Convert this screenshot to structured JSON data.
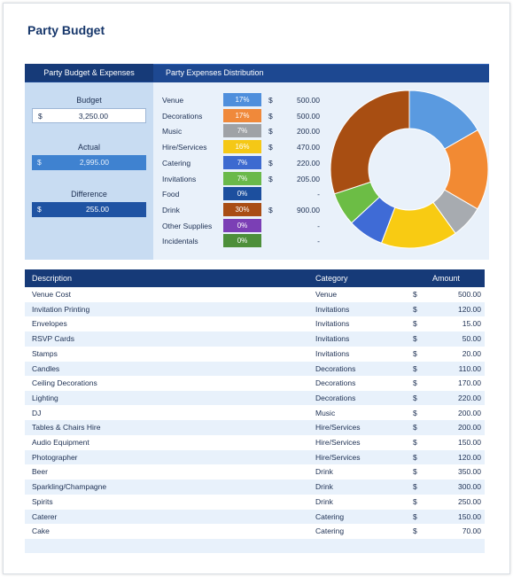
{
  "title": "Party Budget",
  "summary": {
    "left_header": "Party Budget & Expenses",
    "right_header": "Party Expenses Distribution",
    "budget_label": "Budget",
    "budget_currency": "$",
    "budget_value": "3,250.00",
    "actual_label": "Actual",
    "actual_currency": "$",
    "actual_value": "2,995.00",
    "difference_label": "Difference",
    "difference_currency": "$",
    "difference_value": "255.00"
  },
  "distribution": [
    {
      "name": "Venue",
      "pct": "17%",
      "currency": "$",
      "amount": "500.00",
      "color": "#4f8fdc"
    },
    {
      "name": "Decorations",
      "pct": "17%",
      "currency": "$",
      "amount": "500.00",
      "color": "#f0893a"
    },
    {
      "name": "Music",
      "pct": "7%",
      "currency": "$",
      "amount": "200.00",
      "color": "#9fa2a6"
    },
    {
      "name": "Hire/Services",
      "pct": "16%",
      "currency": "$",
      "amount": "470.00",
      "color": "#f5c816"
    },
    {
      "name": "Catering",
      "pct": "7%",
      "currency": "$",
      "amount": "220.00",
      "color": "#3d6ad0"
    },
    {
      "name": "Invitations",
      "pct": "7%",
      "currency": "$",
      "amount": "205.00",
      "color": "#6ab94a"
    },
    {
      "name": "Food",
      "pct": "0%",
      "currency": "",
      "amount": "-",
      "color": "#1c4f9e"
    },
    {
      "name": "Drink",
      "pct": "30%",
      "currency": "$",
      "amount": "900.00",
      "color": "#a94d14"
    },
    {
      "name": "Other Supplies",
      "pct": "0%",
      "currency": "",
      "amount": "-",
      "color": "#7b3fb5"
    },
    {
      "name": "Incidentals",
      "pct": "0%",
      "currency": "",
      "amount": "-",
      "color": "#4d8f3a"
    }
  ],
  "chart_data": {
    "type": "pie",
    "categories": [
      "Venue",
      "Decorations",
      "Music",
      "Hire/Services",
      "Catering",
      "Invitations",
      "Food",
      "Drink",
      "Other Supplies",
      "Incidentals"
    ],
    "values": [
      500,
      500,
      200,
      470,
      220,
      205,
      0,
      900,
      0,
      0
    ],
    "colors": [
      "#5a9ae0",
      "#f28a33",
      "#a7abb0",
      "#f8cb13",
      "#3f6bd6",
      "#6cbd45",
      "#1c4f9e",
      "#a84e12",
      "#7b3fb5",
      "#4d8f3a"
    ],
    "donut": true
  },
  "table": {
    "headers": {
      "description": "Description",
      "category": "Category",
      "amount": "Amount"
    },
    "rows": [
      {
        "description": "Venue Cost",
        "category": "Venue",
        "currency": "$",
        "amount": "500.00"
      },
      {
        "description": "Invitation Printing",
        "category": "Invitations",
        "currency": "$",
        "amount": "120.00"
      },
      {
        "description": "Envelopes",
        "category": "Invitations",
        "currency": "$",
        "amount": "15.00"
      },
      {
        "description": "RSVP Cards",
        "category": "Invitations",
        "currency": "$",
        "amount": "50.00"
      },
      {
        "description": "Stamps",
        "category": "Invitations",
        "currency": "$",
        "amount": "20.00"
      },
      {
        "description": "Candles",
        "category": "Decorations",
        "currency": "$",
        "amount": "110.00"
      },
      {
        "description": "Ceiling Decorations",
        "category": "Decorations",
        "currency": "$",
        "amount": "170.00"
      },
      {
        "description": "Lighting",
        "category": "Decorations",
        "currency": "$",
        "amount": "220.00"
      },
      {
        "description": "DJ",
        "category": "Music",
        "currency": "$",
        "amount": "200.00"
      },
      {
        "description": "Tables & Chairs Hire",
        "category": "Hire/Services",
        "currency": "$",
        "amount": "200.00"
      },
      {
        "description": "Audio Equipment",
        "category": "Hire/Services",
        "currency": "$",
        "amount": "150.00"
      },
      {
        "description": "Photographer",
        "category": "Hire/Services",
        "currency": "$",
        "amount": "120.00"
      },
      {
        "description": "Beer",
        "category": "Drink",
        "currency": "$",
        "amount": "350.00"
      },
      {
        "description": "Sparkling/Champagne",
        "category": "Drink",
        "currency": "$",
        "amount": "300.00"
      },
      {
        "description": "Spirits",
        "category": "Drink",
        "currency": "$",
        "amount": "250.00"
      },
      {
        "description": "Caterer",
        "category": "Catering",
        "currency": "$",
        "amount": "150.00"
      },
      {
        "description": "Cake",
        "category": "Catering",
        "currency": "$",
        "amount": "70.00"
      },
      {
        "description": "",
        "category": "",
        "currency": "",
        "amount": ""
      }
    ]
  }
}
